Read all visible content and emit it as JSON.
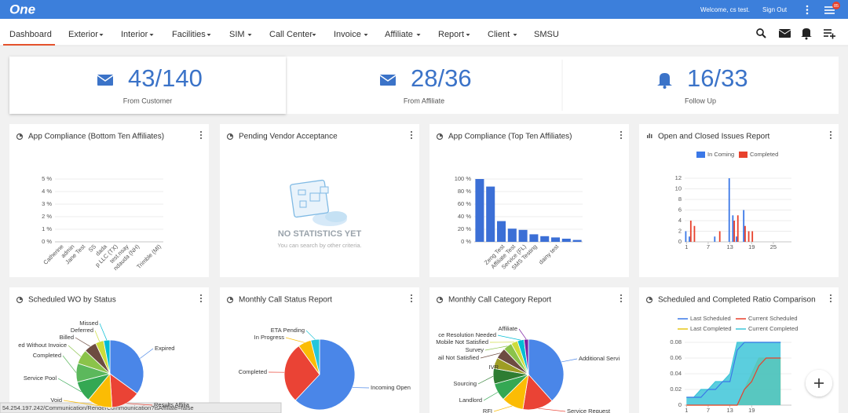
{
  "header": {
    "logo": "One",
    "welcome": "Welcome, cs test.",
    "sign_out": "Sign Out",
    "badge": "85"
  },
  "nav": [
    "Dashboard",
    "Exterior",
    "Interior",
    "Facilities",
    "SIM",
    "Call Center",
    "Invoice",
    "Affiliate",
    "Report",
    "Client",
    "SMSU"
  ],
  "stats": [
    {
      "value": "43/140",
      "label": "From Customer"
    },
    {
      "value": "28/36",
      "label": "From Affiliate"
    },
    {
      "value": "16/33",
      "label": "Follow Up"
    }
  ],
  "empty_widget": {
    "title": "Pending Vendor Acceptance",
    "message": "NO STATISTICS YET",
    "hint": "You can search by other criteria."
  },
  "status_bar": "54.254.197.242/Communication/RenderCommounication?isAffiliate=false",
  "chart_data": [
    {
      "type": "bar",
      "title": "App Compliance (Bottom Ten Affiliates)",
      "categories": [
        "Catherine",
        "admin",
        "Jane Test",
        "SS",
        "dada",
        "p LLC (TX)",
        "test.nsay",
        "ndauda (NH)",
        null,
        "Trimble (MI)"
      ],
      "values": [
        0,
        0,
        0,
        0,
        0,
        0,
        0,
        0,
        0,
        0
      ],
      "color": "#3b6fd6",
      "ylim": [
        0,
        5
      ],
      "yticks": [
        {
          "value": 0,
          "label": "0 %"
        },
        {
          "value": 1,
          "label": "1 %"
        },
        {
          "value": 2,
          "label": "2 %"
        },
        {
          "value": 3,
          "label": "3 %"
        },
        {
          "value": 4,
          "label": "4 %"
        },
        {
          "value": 5,
          "label": "5 %"
        }
      ],
      "grid": true
    },
    {
      "type": "bar",
      "title": "App Compliance (Top Ten Affiliates)",
      "categories": [
        null,
        null,
        "Zeng Test",
        "Affiliate Test",
        "Service (FL)",
        "SMS Testing",
        null,
        "dainy test",
        null,
        null
      ],
      "values": [
        100,
        88,
        33,
        21,
        19,
        12,
        9,
        7,
        5,
        3
      ],
      "color": "#3b6fd6",
      "ylim": [
        0,
        100
      ],
      "yticks": [
        {
          "value": 0,
          "label": "0 %"
        },
        {
          "value": 20,
          "label": "20 %"
        },
        {
          "value": 40,
          "label": "40 %"
        },
        {
          "value": 60,
          "label": "60 %"
        },
        {
          "value": 80,
          "label": "80 %"
        },
        {
          "value": 100,
          "label": "100 %"
        }
      ],
      "grid": true
    },
    {
      "type": "bar",
      "title": "Open and Closed Issues Report",
      "x": [
        1,
        2,
        3,
        4,
        5,
        6,
        7,
        8,
        9,
        10,
        11,
        12,
        13,
        14,
        15,
        16,
        17,
        18,
        19,
        20,
        21,
        22,
        23,
        24,
        25,
        26,
        27,
        28,
        29,
        30
      ],
      "series": [
        {
          "name": "In Coming",
          "color": "#3b78e7",
          "values": [
            2,
            1,
            0,
            0,
            0,
            0,
            0,
            0,
            1,
            0,
            0,
            0,
            12,
            5,
            1,
            0,
            6,
            0,
            0,
            0,
            0,
            0,
            0,
            0,
            0,
            0,
            0,
            0,
            0,
            0
          ]
        },
        {
          "name": "Completed",
          "color": "#e8412c",
          "values": [
            0,
            4,
            3,
            0,
            0,
            0,
            0,
            0,
            0,
            2,
            0,
            0,
            0,
            4,
            5,
            0,
            3,
            2,
            2,
            0,
            0,
            0,
            0,
            0,
            0,
            0,
            0,
            0,
            0,
            0
          ]
        }
      ],
      "xlim": [
        0.5,
        30
      ],
      "xticks": [
        1,
        7,
        13,
        19,
        25
      ],
      "ylim": [
        0,
        12
      ],
      "yticks": [
        0,
        2,
        4,
        6,
        8,
        10,
        12
      ],
      "grid": true
    },
    {
      "type": "pie",
      "title": "Scheduled WO by Status",
      "categories": [
        "Expired",
        "Results Affilia",
        "Void",
        "Service Pool",
        "Completed",
        "ed Without Invoice",
        "Billed",
        "Deferred",
        "Missed"
      ],
      "values": [
        35,
        14,
        12,
        10,
        9,
        7,
        6,
        4,
        3
      ],
      "colors": [
        "#4a86e8",
        "#ea4335",
        "#fbbc04",
        "#34a853",
        "#5cb85c",
        "#8bc34a",
        "#6d4c41",
        "#cddc39",
        "#00bcd4"
      ]
    },
    {
      "type": "pie",
      "title": "Monthly Call Status Report",
      "categories": [
        "Incoming Open",
        "Completed",
        "In Progress",
        "ETA Pending"
      ],
      "values": [
        62,
        28,
        6,
        4
      ],
      "colors": [
        "#4a86e8",
        "#ea4335",
        "#fbbc04",
        "#26c6da"
      ]
    },
    {
      "type": "pie",
      "title": "Monthly Call Category Report",
      "categories": [
        "Additional Servi",
        "Service Request",
        "RFI",
        "Landlord",
        "Sourcing",
        "IVR",
        "ail Not Satisfied",
        "Survey",
        "Mobile Not Satisfied",
        "ce Resolution Needed",
        "Affiliate"
      ],
      "values": [
        38,
        14,
        10,
        8,
        7,
        5,
        5,
        4,
        3,
        3,
        2
      ],
      "colors": [
        "#4a86e8",
        "#ea4335",
        "#fbbc04",
        "#34a853",
        "#2e7d32",
        "#9e9d24",
        "#6d4c41",
        "#8bc34a",
        "#cddc39",
        "#00bcd4",
        "#7b1fa2"
      ]
    },
    {
      "type": "area",
      "title": "Scheduled and Completed Ratio Comparison",
      "x": [
        1,
        3,
        5,
        7,
        9,
        11,
        13,
        15,
        17,
        19,
        21,
        23,
        25,
        27
      ],
      "series": [
        {
          "name": "Last Scheduled",
          "color": "#3b78e7",
          "fill": false,
          "values": [
            0.01,
            0.01,
            0.01,
            0.02,
            0.02,
            0.03,
            0.03,
            0.07,
            0.08,
            0.08,
            0.08,
            0.08,
            0.08,
            0.08
          ]
        },
        {
          "name": "Current Scheduled",
          "color": "#e8412c",
          "fill": false,
          "values": [
            0,
            0,
            0,
            0,
            0,
            0,
            0,
            0,
            0.02,
            0.03,
            0.05,
            0.06,
            0.06,
            0.06
          ]
        },
        {
          "name": "Last Completed",
          "color": "#e6c619",
          "fill": true,
          "values": [
            0,
            0,
            0,
            0,
            0,
            0,
            0,
            0,
            0.02,
            0.04,
            0.06,
            0.06,
            0.06,
            0.06
          ]
        },
        {
          "name": "Current Completed",
          "color": "#3ec5d8",
          "fill": true,
          "values": [
            0.01,
            0.01,
            0.02,
            0.02,
            0.03,
            0.03,
            0.04,
            0.08,
            0.08,
            0.08,
            0.08,
            0.08,
            0.08,
            0.08
          ]
        }
      ],
      "xlim": [
        0.5,
        30
      ],
      "xticks": [
        1,
        7,
        13,
        19
      ],
      "ylim": [
        0,
        0.08
      ],
      "yticks": [
        0,
        0.02,
        0.04,
        0.06,
        0.08
      ],
      "grid": true
    }
  ]
}
